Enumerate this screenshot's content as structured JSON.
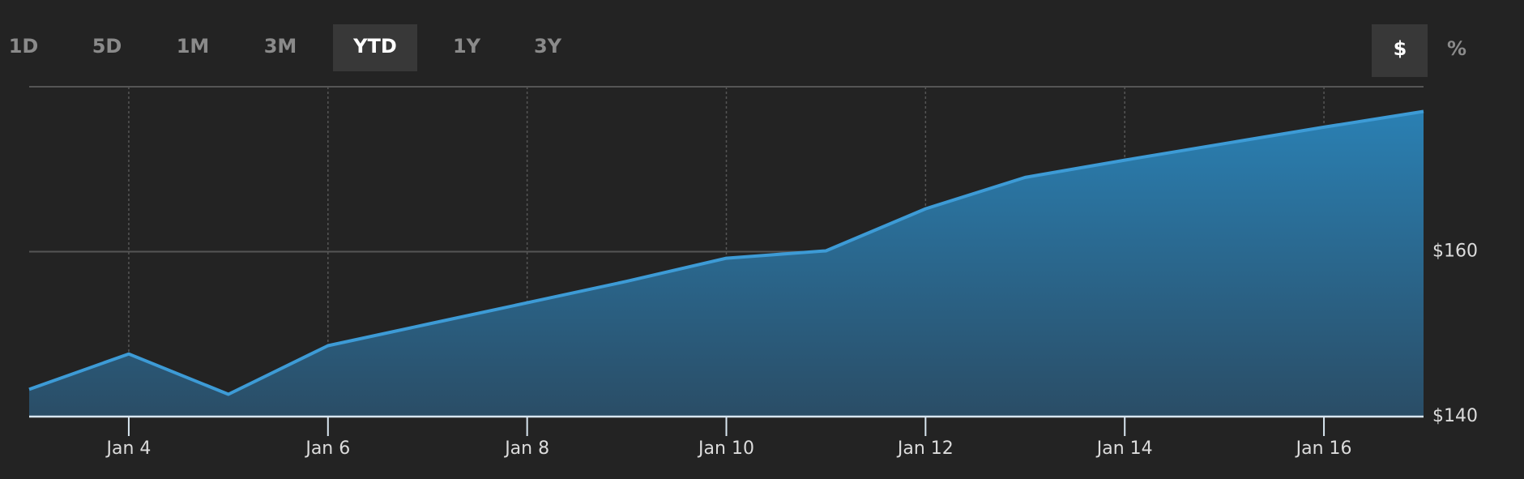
{
  "toolbar": {
    "ranges": [
      "1D",
      "5D",
      "1M",
      "3M",
      "YTD",
      "1Y",
      "3Y"
    ],
    "selected_range": "YTD",
    "units": [
      "$",
      "%"
    ],
    "selected_unit": "$"
  },
  "chart_data": {
    "type": "area",
    "categories": [
      null,
      "Jan 4",
      null,
      "Jan 6",
      null,
      "Jan 8",
      null,
      "Jan 10",
      null,
      "Jan 12",
      null,
      "Jan 14",
      null,
      "Jan 16",
      null
    ],
    "values": [
      143.3,
      147.6,
      142.7,
      148.6,
      151.2,
      153.8,
      156.4,
      159.2,
      160.1,
      165.2,
      169.0,
      171.1,
      173.1,
      175.1,
      177.0
    ],
    "color": "#3d9bd6",
    "ylim": [
      140,
      180
    ],
    "yticks": [
      {
        "value": 140,
        "label": "$140"
      },
      {
        "value": 160,
        "label": "$160"
      }
    ],
    "grid": true
  }
}
